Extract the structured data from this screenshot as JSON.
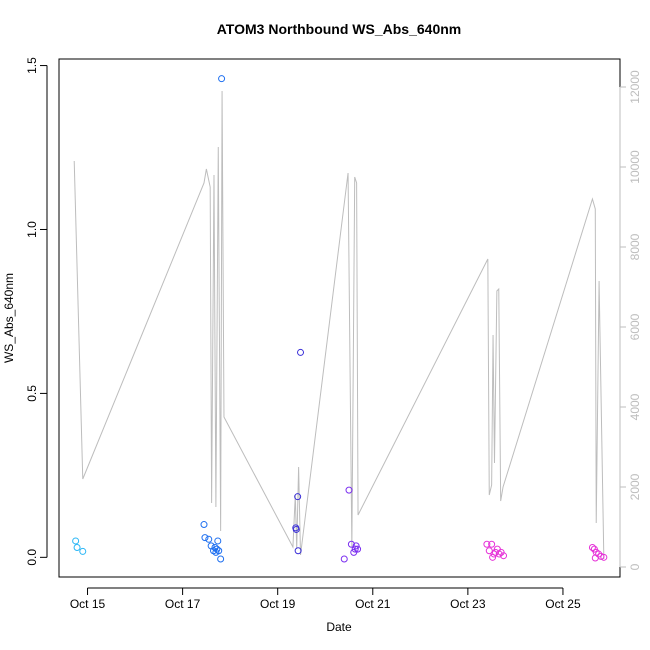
{
  "chart_data": {
    "type": "scatter",
    "title": "ATOM3 Northbound WS_Abs_640nm",
    "xlabel": "Date",
    "ylabel": "WS_Abs_640nm",
    "x_unit": "day of October",
    "xlim": [
      14.4,
      26.2
    ],
    "ylim": [
      -0.06,
      1.52
    ],
    "x_ticks": [
      {
        "value": 15,
        "label": "Oct 15"
      },
      {
        "value": 17,
        "label": "Oct 17"
      },
      {
        "value": 19,
        "label": "Oct 19"
      },
      {
        "value": 21,
        "label": "Oct 21"
      },
      {
        "value": 23,
        "label": "Oct 23"
      },
      {
        "value": 25,
        "label": "Oct 25"
      }
    ],
    "y_ticks": [
      {
        "value": 0.0,
        "label": "0.0"
      },
      {
        "value": 0.5,
        "label": "0.5"
      },
      {
        "value": 1.0,
        "label": "1.0"
      },
      {
        "value": 1.5,
        "label": "1.5"
      }
    ],
    "y2_ticks": [
      {
        "value": 0,
        "label": "0"
      },
      {
        "value": 2000,
        "label": "2000"
      },
      {
        "value": 4000,
        "label": "4000"
      },
      {
        "value": 6000,
        "label": "6000"
      },
      {
        "value": 8000,
        "label": "8000"
      },
      {
        "value": 10000,
        "label": "10000"
      },
      {
        "value": 12000,
        "label": "12000"
      }
    ],
    "y2lim": [
      -250,
      12700
    ],
    "point_style": "open-circle",
    "point_colors_by_time": [
      "#29b6f6",
      "#1e6ff0",
      "#3a2fd8",
      "#7b2ff0",
      "#b61fe8",
      "#e632d8"
    ],
    "points": [
      {
        "x": 14.75,
        "y": 0.05,
        "color": "#29b6f6"
      },
      {
        "x": 14.78,
        "y": 0.03,
        "color": "#29b6f6"
      },
      {
        "x": 14.9,
        "y": 0.018,
        "color": "#29b6f6"
      },
      {
        "x": 17.45,
        "y": 0.1,
        "color": "#1e6ff0"
      },
      {
        "x": 17.47,
        "y": 0.06,
        "color": "#1e6ff0"
      },
      {
        "x": 17.55,
        "y": 0.055,
        "color": "#1e6ff0"
      },
      {
        "x": 17.6,
        "y": 0.035,
        "color": "#1e6ff0"
      },
      {
        "x": 17.65,
        "y": 0.02,
        "color": "#1e6ff0"
      },
      {
        "x": 17.68,
        "y": 0.03,
        "color": "#1e6ff0"
      },
      {
        "x": 17.7,
        "y": 0.015,
        "color": "#1e6ff0"
      },
      {
        "x": 17.72,
        "y": 0.025,
        "color": "#1e6ff0"
      },
      {
        "x": 17.74,
        "y": 0.05,
        "color": "#1e6ff0"
      },
      {
        "x": 17.76,
        "y": 0.02,
        "color": "#1e6ff0"
      },
      {
        "x": 17.8,
        "y": -0.005,
        "color": "#1e6ff0"
      },
      {
        "x": 17.82,
        "y": 1.46,
        "color": "#1e6ff0"
      },
      {
        "x": 19.38,
        "y": 0.09,
        "color": "#3a2fd8"
      },
      {
        "x": 19.39,
        "y": 0.085,
        "color": "#3a2fd8"
      },
      {
        "x": 19.42,
        "y": 0.185,
        "color": "#3a2fd8"
      },
      {
        "x": 19.43,
        "y": 0.02,
        "color": "#3a2fd8"
      },
      {
        "x": 19.48,
        "y": 0.625,
        "color": "#3a2fd8"
      },
      {
        "x": 20.4,
        "y": -0.005,
        "color": "#7b2ff0"
      },
      {
        "x": 20.5,
        "y": 0.205,
        "color": "#7b2ff0"
      },
      {
        "x": 20.55,
        "y": 0.04,
        "color": "#7b2ff0"
      },
      {
        "x": 20.6,
        "y": 0.015,
        "color": "#7b2ff0"
      },
      {
        "x": 20.63,
        "y": 0.025,
        "color": "#7b2ff0"
      },
      {
        "x": 20.65,
        "y": 0.035,
        "color": "#7b2ff0"
      },
      {
        "x": 20.68,
        "y": 0.025,
        "color": "#7b2ff0"
      },
      {
        "x": 23.4,
        "y": 0.04,
        "color": "#e632d8"
      },
      {
        "x": 23.45,
        "y": 0.02,
        "color": "#e632d8"
      },
      {
        "x": 23.5,
        "y": 0.04,
        "color": "#e632d8"
      },
      {
        "x": 23.52,
        "y": 0.0,
        "color": "#e632d8"
      },
      {
        "x": 23.55,
        "y": 0.01,
        "color": "#e632d8"
      },
      {
        "x": 23.58,
        "y": 0.015,
        "color": "#e632d8"
      },
      {
        "x": 23.62,
        "y": 0.025,
        "color": "#e632d8"
      },
      {
        "x": 23.66,
        "y": 0.01,
        "color": "#e632d8"
      },
      {
        "x": 23.7,
        "y": 0.015,
        "color": "#e632d8"
      },
      {
        "x": 23.75,
        "y": 0.005,
        "color": "#e632d8"
      },
      {
        "x": 25.62,
        "y": 0.03,
        "color": "#e632d8"
      },
      {
        "x": 25.66,
        "y": 0.025,
        "color": "#e632d8"
      },
      {
        "x": 25.68,
        "y": -0.002,
        "color": "#e632d8"
      },
      {
        "x": 25.7,
        "y": 0.015,
        "color": "#e632d8"
      },
      {
        "x": 25.75,
        "y": 0.01,
        "color": "#e632d8"
      },
      {
        "x": 25.8,
        "y": 0.003,
        "color": "#e632d8"
      },
      {
        "x": 25.86,
        "y": 0.0,
        "color": "#e632d8"
      }
    ],
    "secondary_line": {
      "color": "#bdbdbd",
      "axis": "right",
      "points": [
        {
          "x": 14.72,
          "y": 10150
        },
        {
          "x": 14.9,
          "y": 2200
        },
        {
          "x": 17.45,
          "y": 9600
        },
        {
          "x": 17.5,
          "y": 9950
        },
        {
          "x": 17.58,
          "y": 9500
        },
        {
          "x": 17.61,
          "y": 1600
        },
        {
          "x": 17.66,
          "y": 9800
        },
        {
          "x": 17.7,
          "y": 1500
        },
        {
          "x": 17.75,
          "y": 10500
        },
        {
          "x": 17.8,
          "y": 900
        },
        {
          "x": 17.83,
          "y": 11900
        },
        {
          "x": 17.87,
          "y": 3750
        },
        {
          "x": 19.32,
          "y": 500
        },
        {
          "x": 19.37,
          "y": 1800
        },
        {
          "x": 19.4,
          "y": 450
        },
        {
          "x": 19.44,
          "y": 2500
        },
        {
          "x": 19.48,
          "y": 300
        },
        {
          "x": 20.48,
          "y": 9850
        },
        {
          "x": 20.56,
          "y": 500
        },
        {
          "x": 20.62,
          "y": 9750
        },
        {
          "x": 20.66,
          "y": 9600
        },
        {
          "x": 20.69,
          "y": 1300
        },
        {
          "x": 23.42,
          "y": 7700
        },
        {
          "x": 23.45,
          "y": 1800
        },
        {
          "x": 23.5,
          "y": 2050
        },
        {
          "x": 23.53,
          "y": 5800
        },
        {
          "x": 23.56,
          "y": 2600
        },
        {
          "x": 23.61,
          "y": 6900
        },
        {
          "x": 23.65,
          "y": 6950
        },
        {
          "x": 23.69,
          "y": 1650
        },
        {
          "x": 23.74,
          "y": 2000
        },
        {
          "x": 25.62,
          "y": 9200
        },
        {
          "x": 25.68,
          "y": 8950
        },
        {
          "x": 25.7,
          "y": 1100
        },
        {
          "x": 25.76,
          "y": 7150
        },
        {
          "x": 25.86,
          "y": 200
        }
      ]
    },
    "grid": false,
    "legend": "none"
  }
}
